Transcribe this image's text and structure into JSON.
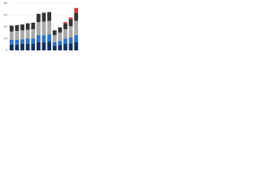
{
  "chart_data": {
    "type": "stacked-bar",
    "categories": [
      null,
      null,
      null,
      null,
      null,
      null,
      null,
      null,
      null,
      null,
      null,
      null,
      null
    ],
    "series": [
      {
        "color": "#13305f",
        "values": [
          10,
          10,
          11,
          11,
          11,
          14,
          14,
          15,
          8,
          9,
          11,
          12,
          14
        ]
      },
      {
        "color": "#2f73c4",
        "values": [
          8,
          8,
          8,
          9,
          9,
          12,
          12,
          12,
          6,
          7,
          9,
          10,
          12
        ]
      },
      {
        "color": "#a9a9a9",
        "values": [
          14,
          15,
          15,
          15,
          16,
          22,
          23,
          23,
          12,
          14,
          16,
          19,
          24
        ]
      },
      {
        "color": "#333333",
        "values": [
          10,
          10,
          10,
          11,
          11,
          14,
          15,
          15,
          8,
          9,
          10,
          12,
          14
        ]
      },
      {
        "color": "#d93a3a",
        "values": [
          0,
          0,
          0,
          0,
          0,
          0,
          0,
          0,
          0,
          0,
          2,
          3,
          8
        ]
      }
    ],
    "ylim": [
      0,
      80
    ],
    "yticks": [
      0,
      20,
      40,
      60,
      80
    ],
    "grid": true
  }
}
